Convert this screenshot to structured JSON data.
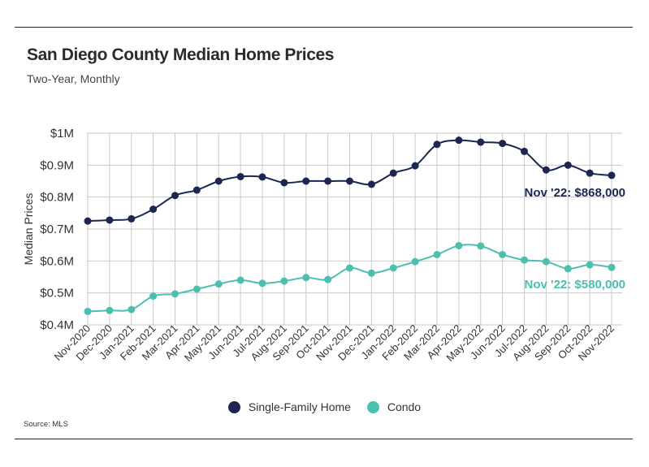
{
  "colors": {
    "single_family": "#1c2651",
    "condo": "#4cbfae",
    "grid": "#c9c9c9",
    "text": "#333333"
  },
  "chart_data": {
    "type": "line",
    "title": "San Diego County Median Home Prices",
    "subtitle": "Two-Year, Monthly",
    "xlabel": "",
    "ylabel": "Median Prices",
    "ylim": [
      400000,
      1000000
    ],
    "yticks": [
      {
        "value": 400000,
        "label": "$0.4M"
      },
      {
        "value": 500000,
        "label": "$0.5M"
      },
      {
        "value": 600000,
        "label": "$0.6M"
      },
      {
        "value": 700000,
        "label": "$0.7M"
      },
      {
        "value": 800000,
        "label": "$0.8M"
      },
      {
        "value": 900000,
        "label": "$0.9M"
      },
      {
        "value": 1000000,
        "label": "$1M"
      }
    ],
    "categories": [
      "Nov-2020",
      "Dec-2020",
      "Jan-2021",
      "Feb-2021",
      "Mar-2021",
      "Apr-2021",
      "May-2021",
      "Jun-2021",
      "Jul-2021",
      "Aug-2021",
      "Sep-2021",
      "Oct-2021",
      "Nov-2021",
      "Dec-2021",
      "Jan-2022",
      "Feb-2022",
      "Mar-2022",
      "Apr-2022",
      "May-2022",
      "Jun-2022",
      "Jul-2022",
      "Aug-2022",
      "Sep-2022",
      "Oct-2022",
      "Nov-2022"
    ],
    "series": [
      {
        "name": "Single-Family Home",
        "color": "#1c2651",
        "values": [
          725000,
          728000,
          732000,
          762000,
          805000,
          822000,
          850000,
          864000,
          863000,
          845000,
          850000,
          850000,
          850000,
          840000,
          875000,
          898000,
          965000,
          978000,
          972000,
          968000,
          943000,
          885000,
          900000,
          875000,
          868000
        ],
        "annotation": "Nov '22: $868,000"
      },
      {
        "name": "Condo",
        "color": "#4cbfae",
        "values": [
          442000,
          445000,
          448000,
          490000,
          497000,
          512000,
          528000,
          540000,
          530000,
          537000,
          548000,
          542000,
          578000,
          562000,
          578000,
          598000,
          620000,
          648000,
          647000,
          620000,
          603000,
          598000,
          576000,
          588000,
          580000
        ],
        "annotation": "Nov '22: $580,000"
      }
    ],
    "grid": true,
    "legend": "bottom-center",
    "source": "Source:  MLS"
  }
}
